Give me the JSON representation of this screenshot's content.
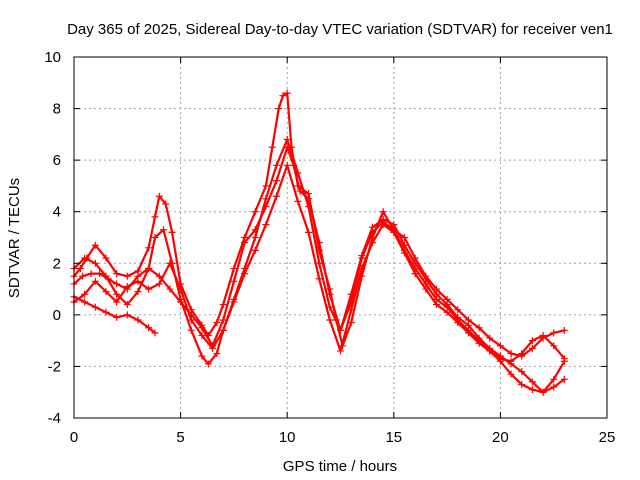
{
  "chart_data": {
    "type": "scatter",
    "title": "Day 365 of 2025, Sidereal Day-to-day VTEC variation (SDTVAR) for receiver ven1",
    "xlabel": "GPS time / hours",
    "ylabel": "SDTVAR / TECUs",
    "xlim": [
      0,
      25
    ],
    "ylim": [
      -4,
      10
    ],
    "xticks": [
      0,
      5,
      10,
      15,
      20,
      25
    ],
    "yticks": [
      -4,
      -2,
      0,
      2,
      4,
      6,
      8,
      10
    ],
    "grid": true,
    "marker": "+",
    "series_color": "#ff0000",
    "series": [
      {
        "name": "track-1",
        "x": [
          0.0,
          0.3,
          0.6,
          1.0,
          1.5,
          2.0,
          2.5,
          3.0,
          3.5,
          3.8,
          4.0,
          4.3,
          4.6,
          5.0,
          5.5,
          6.0,
          6.3,
          6.7,
          7.0,
          7.5,
          8.0,
          8.5,
          9.0,
          9.3,
          9.6,
          9.8,
          10.0,
          10.2,
          10.5,
          11.0,
          11.5,
          12.0,
          12.3,
          12.6,
          13.0,
          13.5,
          14.0,
          14.5,
          15.0,
          15.5,
          16.0,
          16.5,
          17.0,
          17.5,
          18.0,
          18.5,
          19.0,
          19.5,
          20.0,
          20.5,
          21.0,
          21.5,
          22.0,
          22.5,
          23.0
        ],
        "y": [
          1.5,
          1.8,
          2.2,
          2.7,
          2.2,
          1.6,
          1.5,
          1.7,
          2.6,
          3.8,
          4.6,
          4.3,
          3.2,
          1.2,
          0.2,
          -0.4,
          -0.8,
          -0.3,
          0.4,
          1.8,
          3.0,
          4.0,
          5.0,
          6.5,
          8.0,
          8.5,
          8.6,
          6.5,
          5.0,
          4.7,
          2.5,
          1.0,
          -0.2,
          -1.2,
          -0.3,
          1.5,
          3.0,
          4.0,
          3.3,
          2.5,
          1.8,
          1.2,
          0.6,
          0.3,
          -0.2,
          -0.6,
          -1.0,
          -1.4,
          -1.8,
          -2.3,
          -2.7,
          -2.9,
          -3.0,
          -2.8,
          -2.5
        ]
      },
      {
        "name": "track-2",
        "x": [
          0.0,
          0.4,
          0.8,
          1.2,
          1.6,
          2.0,
          2.5,
          3.0,
          3.5,
          4.0,
          4.5,
          5.0,
          5.5,
          6.0,
          6.5,
          7.0,
          7.5,
          8.0,
          8.5,
          9.0,
          9.5,
          10.0,
          10.3,
          10.6,
          11.0,
          11.5,
          12.0,
          12.5,
          13.0,
          13.5,
          14.0,
          14.5,
          15.0,
          15.5,
          16.0,
          16.5,
          17.0,
          17.5,
          18.0,
          18.5,
          19.0,
          19.5,
          20.0,
          20.5,
          21.0,
          21.5,
          22.0,
          22.5,
          23.0
        ],
        "y": [
          1.2,
          1.5,
          1.6,
          1.6,
          1.4,
          1.2,
          1.0,
          1.5,
          1.8,
          1.5,
          1.0,
          0.5,
          0.0,
          -0.5,
          -1.2,
          -0.2,
          1.3,
          2.8,
          3.3,
          4.2,
          5.2,
          6.5,
          5.8,
          4.8,
          4.5,
          2.8,
          0.8,
          -0.6,
          0.5,
          2.2,
          3.2,
          3.6,
          3.3,
          3.0,
          2.2,
          1.5,
          1.0,
          0.6,
          0.2,
          -0.2,
          -0.5,
          -0.9,
          -1.2,
          -1.5,
          -1.6,
          -1.3,
          -0.9,
          -0.7,
          -0.6
        ]
      },
      {
        "name": "track-3",
        "x": [
          0.0,
          0.5,
          1.0,
          1.5,
          2.0,
          2.5,
          3.0,
          3.5,
          3.8,
          4.2,
          4.6,
          5.0,
          5.5,
          6.0,
          6.3,
          6.7,
          7.0,
          7.5,
          8.0,
          8.5,
          9.0,
          9.5,
          10.0,
          10.5,
          11.0,
          11.5,
          12.0,
          12.5,
          13.0,
          13.5,
          14.0,
          14.5,
          15.0,
          15.5,
          16.0,
          16.5,
          17.0,
          17.5,
          18.0,
          18.5,
          19.0,
          19.5,
          20.0,
          20.5,
          21.0,
          21.5,
          22.0,
          22.5,
          23.0
        ],
        "y": [
          1.8,
          2.2,
          2.0,
          1.5,
          0.8,
          0.4,
          0.9,
          1.8,
          3.0,
          3.3,
          2.0,
          0.6,
          -0.6,
          -1.6,
          -1.9,
          -1.5,
          -0.6,
          0.6,
          1.8,
          3.0,
          4.5,
          5.8,
          6.8,
          5.5,
          4.2,
          2.0,
          0.3,
          -0.6,
          0.8,
          2.3,
          3.4,
          3.7,
          3.5,
          2.7,
          2.0,
          1.4,
          0.8,
          0.4,
          -0.1,
          -0.4,
          -0.9,
          -1.3,
          -1.6,
          -1.9,
          -2.2,
          -2.6,
          -3.0,
          -2.5,
          -1.8
        ]
      },
      {
        "name": "track-4",
        "x": [
          0.0,
          0.5,
          1.0,
          1.5,
          2.0,
          2.5,
          3.0,
          3.5,
          4.0,
          4.5,
          5.0,
          5.5,
          6.0,
          6.5,
          7.0,
          7.5,
          8.0,
          8.5,
          9.0,
          9.5,
          10.0,
          10.5,
          11.0,
          11.5,
          12.0,
          12.5,
          13.0,
          13.5,
          14.0,
          14.5,
          15.0,
          15.5,
          16.0,
          16.5,
          17.0,
          17.5,
          18.0,
          18.5,
          19.0,
          19.5,
          20.0,
          20.5,
          21.0,
          21.5,
          22.0,
          22.5,
          23.0
        ],
        "y": [
          0.5,
          0.8,
          1.3,
          0.9,
          0.5,
          1.1,
          1.3,
          1.0,
          1.2,
          2.0,
          1.0,
          -0.2,
          -0.8,
          -1.3,
          -0.6,
          0.5,
          1.6,
          2.5,
          3.5,
          4.6,
          5.8,
          4.4,
          3.2,
          1.4,
          -0.2,
          -1.4,
          0.2,
          1.8,
          2.8,
          3.5,
          3.2,
          2.4,
          1.6,
          1.0,
          0.4,
          0.1,
          -0.3,
          -0.7,
          -1.1,
          -1.4,
          -1.7,
          -1.8,
          -1.5,
          -1.0,
          -0.8,
          -1.2,
          -1.7
        ]
      },
      {
        "name": "track-5",
        "x": [
          0.0,
          0.5,
          1.0,
          1.5,
          2.0,
          2.5,
          3.0,
          3.5,
          3.8
        ],
        "y": [
          0.7,
          0.5,
          0.3,
          0.1,
          -0.1,
          0.0,
          -0.2,
          -0.5,
          -0.7
        ]
      }
    ]
  }
}
